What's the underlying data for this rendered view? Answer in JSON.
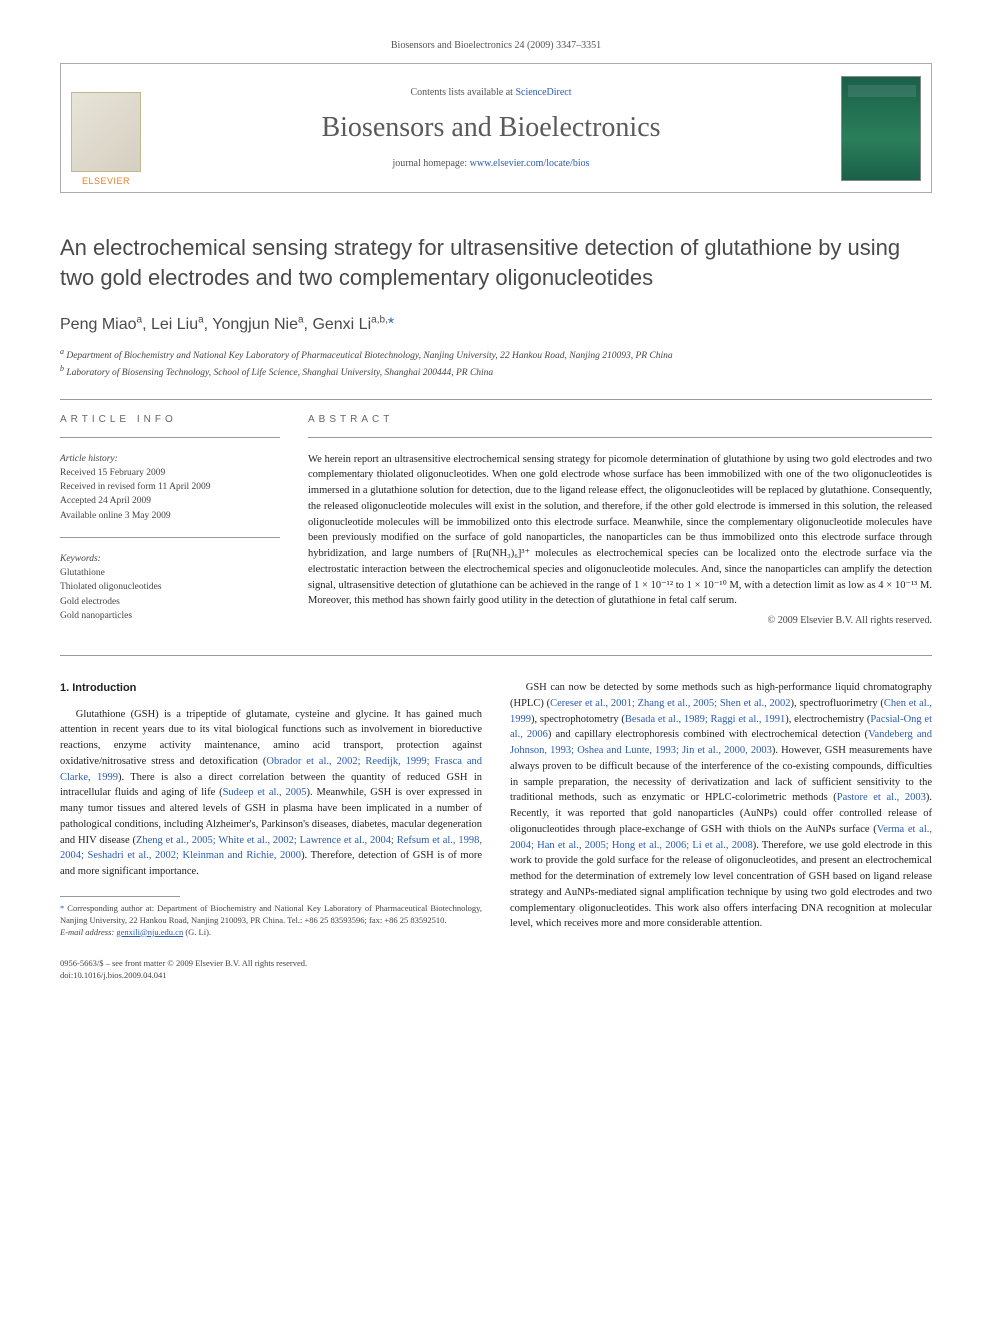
{
  "header": {
    "running_head": "Biosensors and Bioelectronics 24 (2009) 3347–3351"
  },
  "banner": {
    "contents_prefix": "Contents lists available at ",
    "contents_link": "ScienceDirect",
    "journal_name": "Biosensors and Bioelectronics",
    "homepage_prefix": "journal homepage: ",
    "homepage_link": "www.elsevier.com/locate/bios",
    "publisher_label": "ELSEVIER"
  },
  "title": "An electrochemical sensing strategy for ultrasensitive detection of glutathione by using two gold electrodes and two complementary oligonucleotides",
  "authors_html": "Peng Miao<sup>a</sup>, Lei Liu<sup>a</sup>, Yongjun Nie<sup>a</sup>, Genxi Li<sup>a,b,</sup>",
  "affiliations": {
    "a": "Department of Biochemistry and National Key Laboratory of Pharmaceutical Biotechnology, Nanjing University, 22 Hankou Road, Nanjing 210093, PR China",
    "b": "Laboratory of Biosensing Technology, School of Life Science, Shanghai University, Shanghai 200444, PR China"
  },
  "article_info": {
    "label": "ARTICLE INFO",
    "history_label": "Article history:",
    "received": "Received 15 February 2009",
    "revised": "Received in revised form 11 April 2009",
    "accepted": "Accepted 24 April 2009",
    "online": "Available online 3 May 2009",
    "keywords_label": "Keywords:",
    "keywords": [
      "Glutathione",
      "Thiolated oligonucleotides",
      "Gold electrodes",
      "Gold nanoparticles"
    ]
  },
  "abstract": {
    "label": "ABSTRACT",
    "text": "We herein report an ultrasensitive electrochemical sensing strategy for picomole determination of glutathione by using two gold electrodes and two complementary thiolated oligonucleotides. When one gold electrode whose surface has been immobilized with one of the two oligonucleotides is immersed in a glutathione solution for detection, due to the ligand release effect, the oligonucleotides will be replaced by glutathione. Consequently, the released oligonucleotide molecules will exist in the solution, and therefore, if the other gold electrode is immersed in this solution, the released oligonucleotide molecules will be immobilized onto this electrode surface. Meanwhile, since the complementary oligonucleotide molecules have been previously modified on the surface of gold nanoparticles, the nanoparticles can be thus immobilized onto this electrode surface through hybridization, and large numbers of [Ru(NH₃)₆]³⁺ molecules as electrochemical species can be localized onto the electrode surface via the electrostatic interaction between the electrochemical species and oligonucleotide molecules. And, since the nanoparticles can amplify the detection signal, ultrasensitive detection of glutathione can be achieved in the range of 1 × 10⁻¹² to 1 × 10⁻¹⁰ M, with a detection limit as low as 4 × 10⁻¹³ M. Moreover, this method has shown fairly good utility in the detection of glutathione in fetal calf serum.",
    "copyright": "© 2009 Elsevier B.V. All rights reserved."
  },
  "body": {
    "section_heading": "1. Introduction",
    "col1_p1_pre": "Glutathione (GSH) is a tripeptide of glutamate, cysteine and glycine. It has gained much attention in recent years due to its vital biological functions such as involvement in bioreductive reactions, enzyme activity maintenance, amino acid transport, protection against oxidative/nitrosative stress and detoxification (",
    "col1_p1_cite1": "Obrador et al., 2002; Reedijk, 1999; Frasca and Clarke, 1999",
    "col1_p1_mid1": "). There is also a direct correlation between the quantity of reduced GSH in intracellular fluids and aging of life (",
    "col1_p1_cite2": "Sudeep et al., 2005",
    "col1_p1_mid2": "). Meanwhile, GSH is over expressed in many tumor tissues and altered levels of GSH in plasma have been implicated in a number of pathological conditions, including Alzheimer's, Parkinson's diseases, diabetes, macular degeneration and HIV disease (",
    "col1_p1_cite3": "Zheng et al., 2005; White et al., 2002; Lawrence et al., 2004; Refsum et al., 1998, 2004; Seshadri et al., 2002; Kleinman and Richie, 2000",
    "col1_p1_post": "). Therefore, detection of GSH is of more and more significant importance.",
    "col2_p1_pre": "GSH can now be detected by some methods such as high-performance liquid chromatography (HPLC) (",
    "col2_p1_cite1": "Cereser et al., 2001; Zhang et al., 2005; Shen et al., 2002",
    "col2_p1_mid1": "), spectrofluorimetry (",
    "col2_p1_cite2": "Chen et al., 1999",
    "col2_p1_mid2": "), spectrophotometry (",
    "col2_p1_cite3": "Besada et al., 1989; Raggi et al., 1991",
    "col2_p1_mid3": "), electrochemistry (",
    "col2_p1_cite4": "Pacsial-Ong et al., 2006",
    "col2_p1_mid4": ") and capillary electrophoresis combined with electrochemical detection (",
    "col2_p1_cite5": "Vandeberg and Johnson, 1993; Oshea and Lunte, 1993; Jin et al., 2000, 2003",
    "col2_p1_mid5": "). However, GSH measurements have always proven to be difficult because of the interference of the co-existing compounds, difficulties in sample preparation, the necessity of derivatization and lack of sufficient sensitivity to the traditional methods, such as enzymatic or HPLC-colorimetric methods (",
    "col2_p1_cite6": "Pastore et al., 2003",
    "col2_p1_mid6": "). Recently, it was reported that gold nanoparticles (AuNPs) could offer controlled release of oligonucleotides through place-exchange of GSH with thiols on the AuNPs surface (",
    "col2_p1_cite7": "Verma et al., 2004; Han et al., 2005; Hong et al., 2006; Li et al., 2008",
    "col2_p1_post": "). Therefore, we use gold electrode in this work to provide the gold surface for the release of oligonucleotides, and present an electrochemical method for the determination of extremely low level concentration of GSH based on ligand release strategy and AuNPs-mediated signal amplification technique by using two gold electrodes and two complementary oligonucleotides. This work also offers interfacing DNA recognition at molecular level, which receives more and more considerable attention."
  },
  "footnote": {
    "corr": "Corresponding author at: Department of Biochemistry and National Key Laboratory of Pharmaceutical Biotechnology, Nanjing University, 22 Hankou Road, Nanjing 210093, PR China. Tel.: +86 25 83593596; fax: +86 25 83592510.",
    "email_label": "E-mail address: ",
    "email": "genxili@nju.edu.cn",
    "email_suffix": " (G. Li)."
  },
  "footer": {
    "issn": "0956-5663/$ – see front matter © 2009 Elsevier B.V. All rights reserved.",
    "doi": "doi:10.1016/j.bios.2009.04.041"
  },
  "colors": {
    "link": "#2a5db0",
    "text": "#222222",
    "muted": "#555555",
    "heading": "#4a4a4a",
    "publisher": "#e67e22"
  }
}
